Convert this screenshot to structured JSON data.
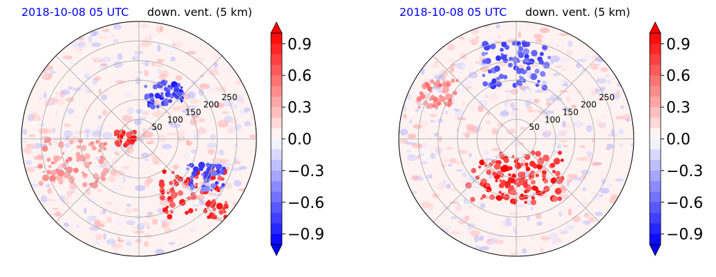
{
  "chart_data": [
    {
      "type": "heatmap",
      "projection": "polar",
      "datetime_label": "2018-10-08 05 UTC",
      "title": "down. vent. (5 km)",
      "radial_ticks": [
        "50",
        "100",
        "150",
        "200",
        "250"
      ],
      "radial_values": [
        50,
        100,
        150,
        200,
        250
      ],
      "r_max": 300,
      "colorbar": {
        "colormap": "bwr",
        "vmin": -1.0,
        "vmax": 1.0,
        "extend": "both",
        "ticks": [
          0.9,
          0.6,
          0.3,
          0.0,
          -0.3,
          -0.6,
          -0.9
        ],
        "tick_labels": [
          "0.9",
          "0.6",
          "0.3",
          "0.0",
          "−0.3",
          "−0.6",
          "−0.9"
        ]
      },
      "features": [
        {
          "azimuth_deg": 135,
          "range_km": 200,
          "value": 1.0,
          "size": "large"
        },
        {
          "azimuth_deg": 270,
          "range_km": 35,
          "value": 1.0,
          "size": "small"
        },
        {
          "azimuth_deg": 30,
          "range_km": 130,
          "value": -0.9,
          "size": "medium"
        },
        {
          "azimuth_deg": 120,
          "range_km": 200,
          "value": -0.8,
          "size": "medium"
        },
        {
          "azimuth_deg": 250,
          "range_km": 180,
          "value": 0.5,
          "size": "large"
        }
      ]
    },
    {
      "type": "heatmap",
      "projection": "polar",
      "datetime_label": "2018-10-08 05 UTC",
      "title": "down. vent. (5 km)",
      "radial_ticks": [
        "50",
        "100",
        "150",
        "200",
        "250"
      ],
      "radial_values": [
        50,
        100,
        150,
        200,
        250
      ],
      "r_max": 300,
      "colorbar": {
        "colormap": "bwr",
        "vmin": -1.0,
        "vmax": 1.0,
        "extend": "both",
        "ticks": [
          0.9,
          0.6,
          0.3,
          0.0,
          -0.3,
          -0.6,
          -0.9
        ],
        "tick_labels": [
          "0.9",
          "0.6",
          "0.3",
          "0.0",
          "−0.3",
          "−0.6",
          "−0.9"
        ]
      },
      "features": [
        {
          "azimuth_deg": 160,
          "range_km": 100,
          "value": 1.0,
          "size": "large"
        },
        {
          "azimuth_deg": 200,
          "range_km": 110,
          "value": 1.0,
          "size": "large"
        },
        {
          "azimuth_deg": 0,
          "range_km": 190,
          "value": -0.8,
          "size": "large"
        },
        {
          "azimuth_deg": 300,
          "range_km": 230,
          "value": 0.6,
          "size": "medium"
        }
      ]
    }
  ]
}
